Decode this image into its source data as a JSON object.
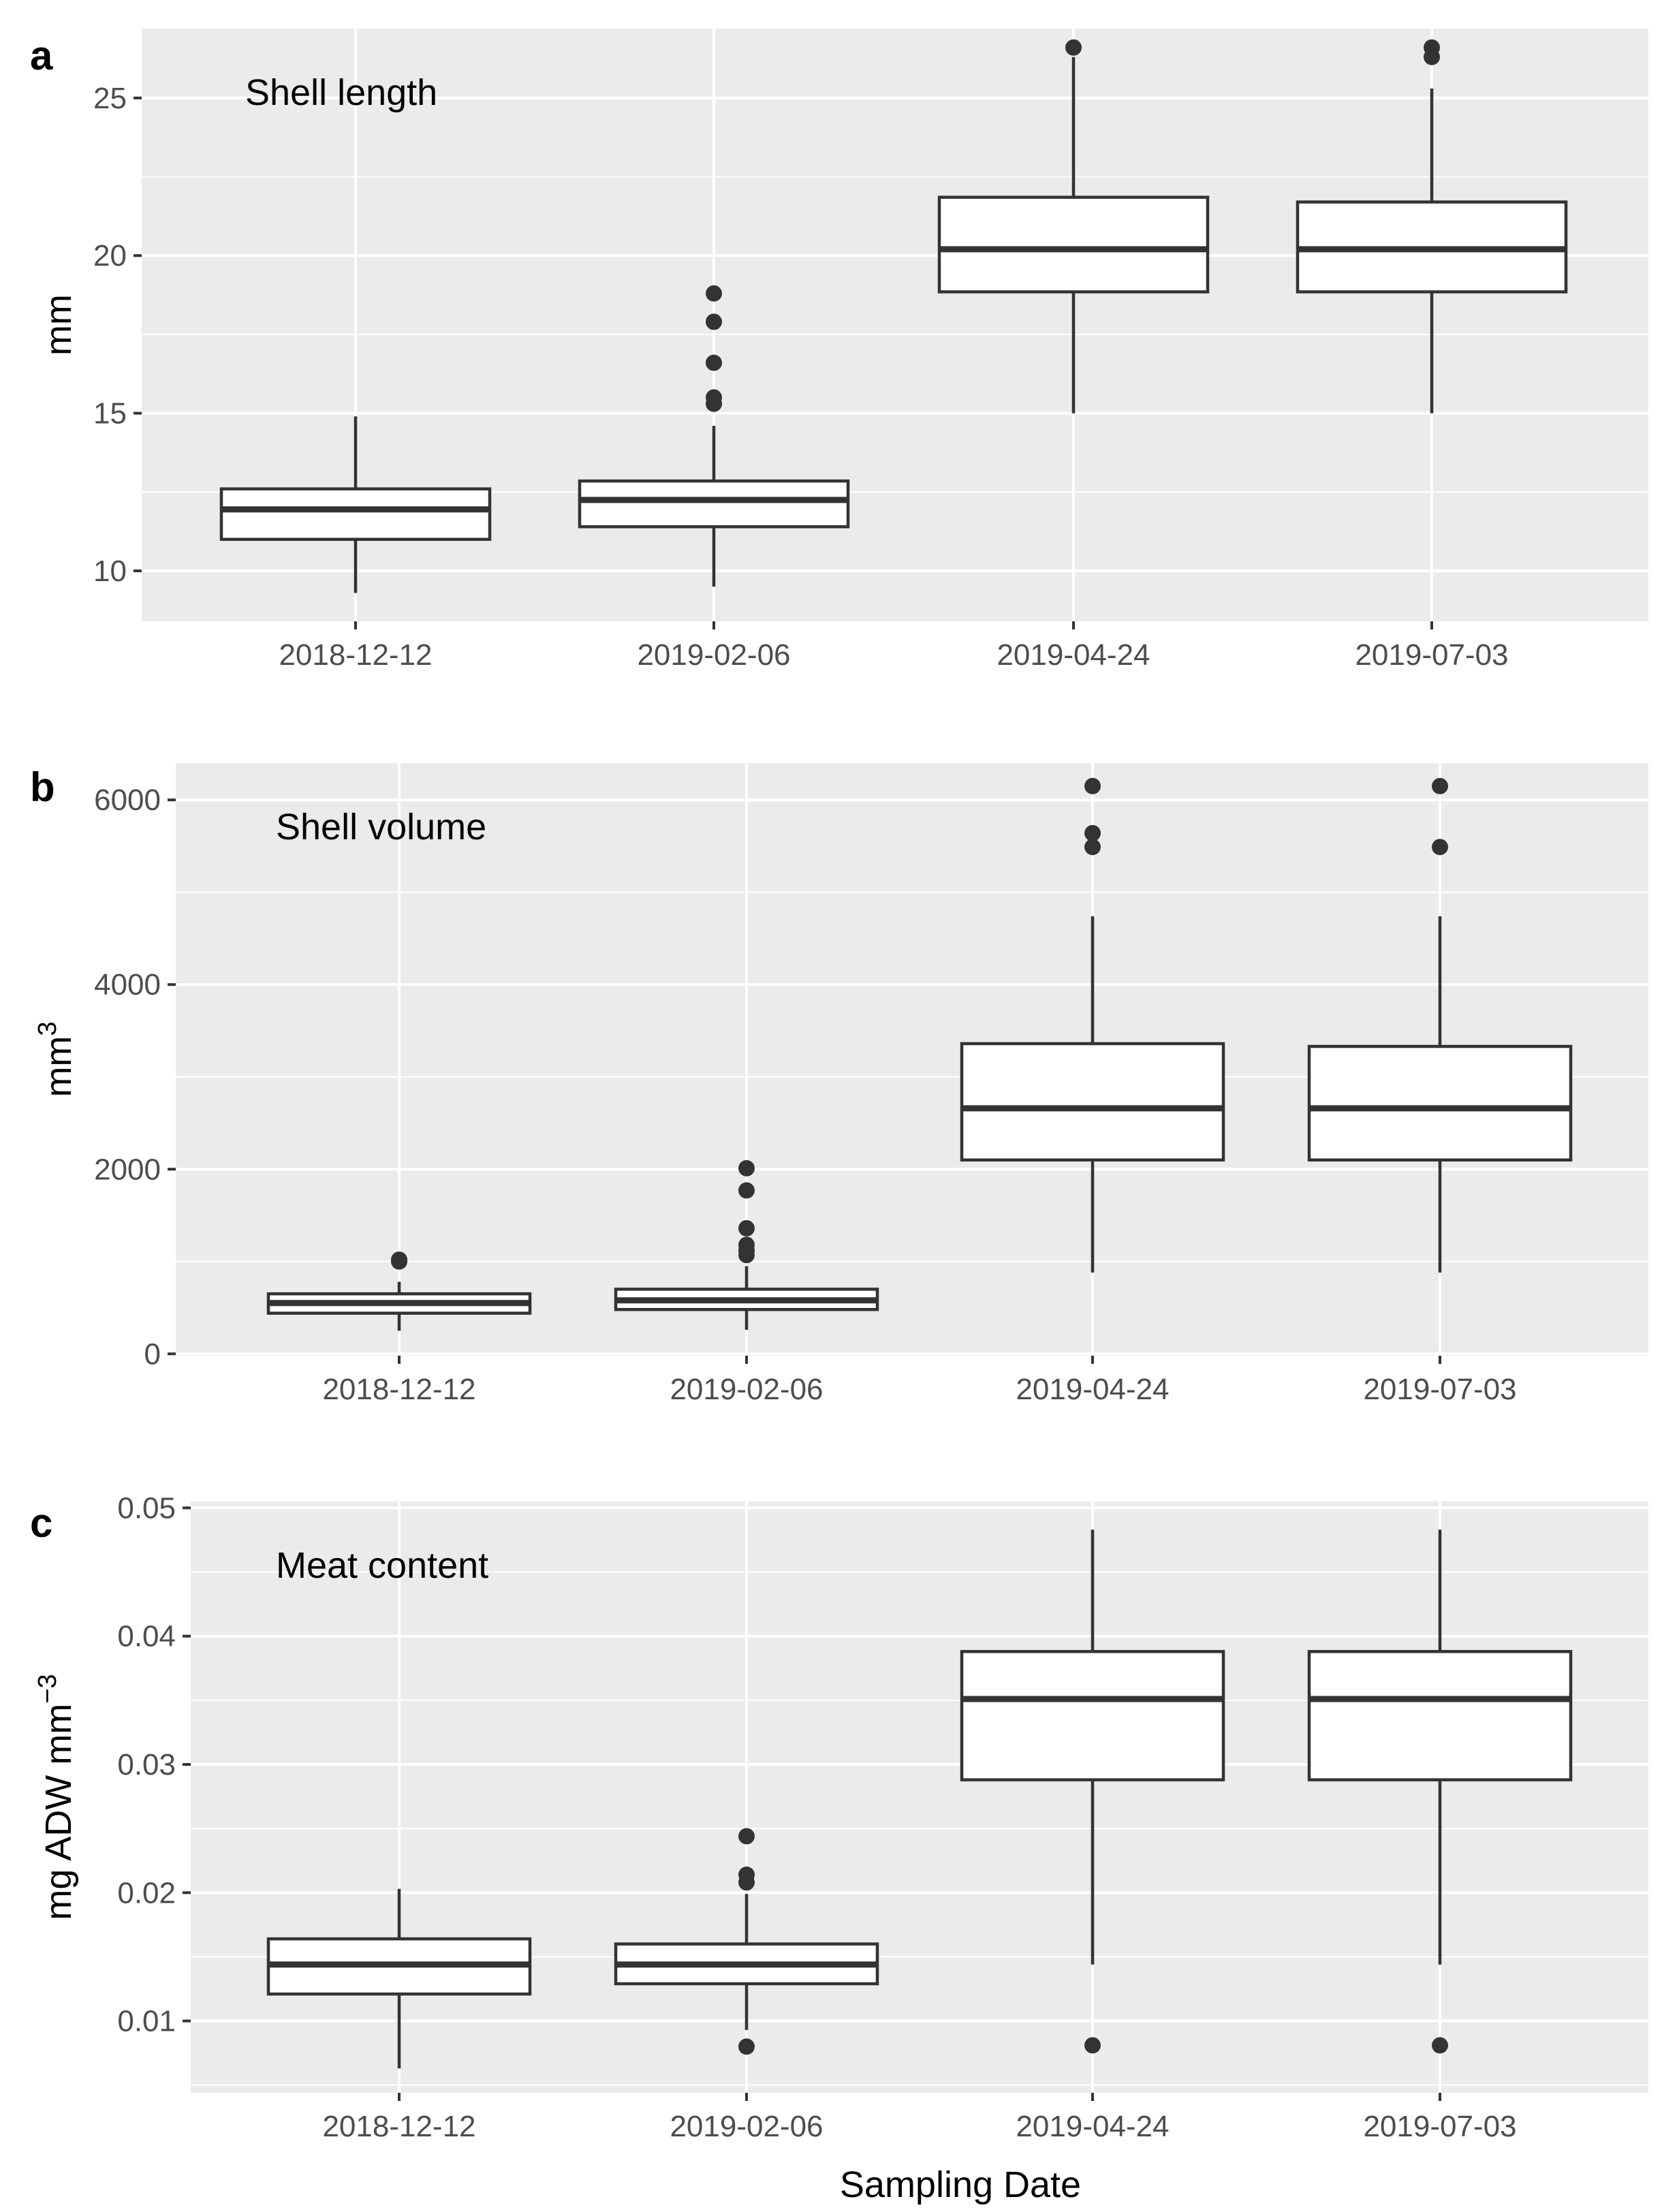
{
  "figure": {
    "xlabel": "Sampling Date"
  },
  "chart_data": [
    {
      "type": "box",
      "letter": "a",
      "title": "Shell length",
      "ylabel": "mm",
      "ylabel_sup": "",
      "ylim": [
        8.4,
        27.2
      ],
      "yticks": [
        10,
        15,
        20,
        25
      ],
      "ytick_labels": [
        "10",
        "15",
        "20",
        "25"
      ],
      "categories": [
        "2018-12-12",
        "2019-02-06",
        "2019-04-24",
        "2019-07-03"
      ],
      "boxes": [
        {
          "whisker_low": 9.3,
          "q1": 11.0,
          "median": 11.95,
          "q3": 12.6,
          "whisker_high": 14.9,
          "outliers": []
        },
        {
          "whisker_low": 9.5,
          "q1": 11.4,
          "median": 12.25,
          "q3": 12.85,
          "whisker_high": 14.6,
          "outliers": [
            15.3,
            15.5,
            16.6,
            17.9,
            18.8
          ]
        },
        {
          "whisker_low": 15.0,
          "q1": 18.85,
          "median": 20.2,
          "q3": 21.85,
          "whisker_high": 26.3,
          "outliers": [
            26.6
          ]
        },
        {
          "whisker_low": 15.0,
          "q1": 18.85,
          "median": 20.2,
          "q3": 21.7,
          "whisker_high": 25.3,
          "outliers": [
            26.3,
            26.6
          ]
        }
      ]
    },
    {
      "type": "box",
      "letter": "b",
      "title": "Shell volume",
      "ylabel": "mm",
      "ylabel_sup": "3",
      "ylim": [
        -20,
        6400
      ],
      "yticks": [
        0,
        2000,
        4000,
        6000
      ],
      "ytick_labels": [
        "0",
        "2000",
        "4000",
        "6000"
      ],
      "categories": [
        "2018-12-12",
        "2019-02-06",
        "2019-04-24",
        "2019-07-03"
      ],
      "boxes": [
        {
          "whisker_low": 250,
          "q1": 440,
          "median": 550,
          "q3": 650,
          "whisker_high": 780,
          "outliers": [
            1000,
            1020
          ]
        },
        {
          "whisker_low": 260,
          "q1": 480,
          "median": 580,
          "q3": 700,
          "whisker_high": 950,
          "outliers": [
            1070,
            1120,
            1180,
            1360,
            1770,
            2010
          ]
        },
        {
          "whisker_low": 880,
          "q1": 2100,
          "median": 2660,
          "q3": 3360,
          "whisker_high": 4740,
          "outliers": [
            5490,
            5640,
            6150
          ]
        },
        {
          "whisker_low": 880,
          "q1": 2100,
          "median": 2660,
          "q3": 3330,
          "whisker_high": 4740,
          "outliers": [
            5490,
            6150
          ]
        }
      ]
    },
    {
      "type": "box",
      "letter": "c",
      "title": "Meat content",
      "ylabel": "mg ADW mm",
      "ylabel_sup": "−3",
      "ylim": [
        0.0044,
        0.0505
      ],
      "yticks": [
        0.01,
        0.02,
        0.03,
        0.04,
        0.05
      ],
      "ytick_labels": [
        "0.01",
        "0.02",
        "0.03",
        "0.04",
        "0.05"
      ],
      "categories": [
        "2018-12-12",
        "2019-02-06",
        "2019-04-24",
        "2019-07-03"
      ],
      "boxes": [
        {
          "whisker_low": 0.0063,
          "q1": 0.0121,
          "median": 0.0144,
          "q3": 0.0164,
          "whisker_high": 0.0203,
          "outliers": []
        },
        {
          "whisker_low": 0.0093,
          "q1": 0.0129,
          "median": 0.0144,
          "q3": 0.016,
          "whisker_high": 0.0199,
          "outliers": [
            0.008,
            0.0208,
            0.0214,
            0.0244
          ]
        },
        {
          "whisker_low": 0.0144,
          "q1": 0.0288,
          "median": 0.0351,
          "q3": 0.0388,
          "whisker_high": 0.0483,
          "outliers": [
            0.0081
          ]
        },
        {
          "whisker_low": 0.0144,
          "q1": 0.0288,
          "median": 0.0351,
          "q3": 0.0388,
          "whisker_high": 0.0483,
          "outliers": [
            0.0081
          ]
        }
      ]
    }
  ]
}
